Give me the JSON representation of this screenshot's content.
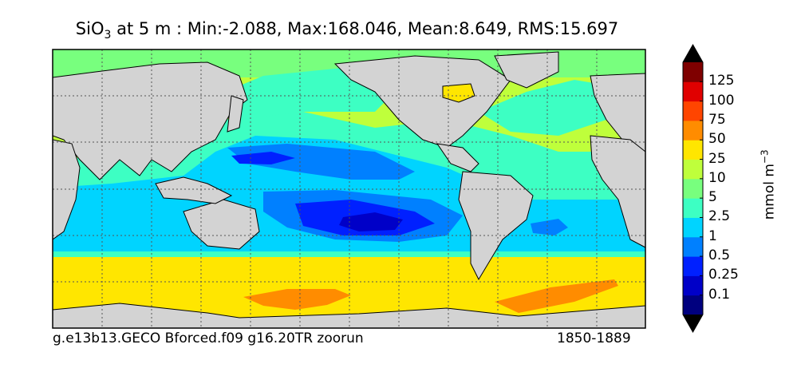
{
  "title": {
    "prefix": "SiO",
    "subscript": "3",
    "rest": " at 5 m : Min:-2.088, Max:168.046, Mean:8.649, RMS:15.697"
  },
  "footer": {
    "run": "g.e13b13.GECO Bforced.f09 g16.20TR zoorun",
    "years": "1850-1889"
  },
  "colorbar": {
    "units": "mmol m",
    "units_exp": "−3",
    "ticks": [
      "125",
      "100",
      "75",
      "50",
      "25",
      "10",
      "5",
      "2.5",
      "1",
      "0.5",
      "0.25",
      "0.1"
    ],
    "colors": [
      "#00007f",
      "#0000c8",
      "#0020ff",
      "#0080ff",
      "#00d4ff",
      "#3dffc3",
      "#78ff7e",
      "#bfff3b",
      "#ffe600",
      "#ff8c00",
      "#ff4500",
      "#e00000",
      "#7f0000"
    ],
    "over_color": "#000000",
    "under_color": "#000000"
  },
  "map": {
    "land_color": "#d3d3d3",
    "ocean_base": "#bfff3b"
  }
}
